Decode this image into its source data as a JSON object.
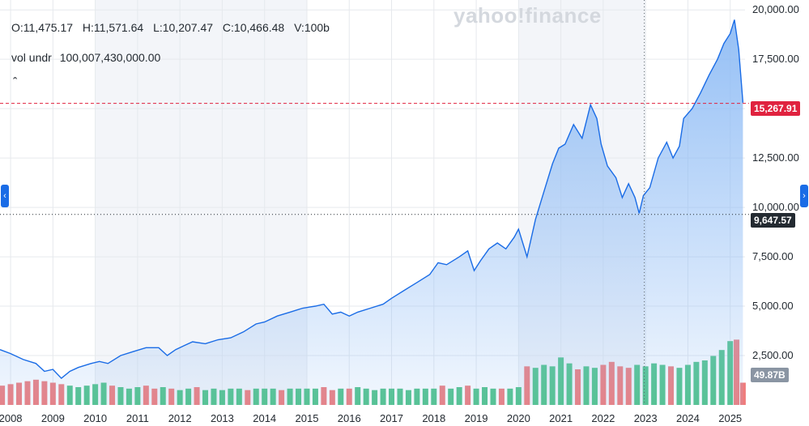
{
  "header": {
    "open": "O:11,475.17",
    "high": "H:11,571.64",
    "low": "L:10,207.47",
    "close": "C:10,466.48",
    "volume": "V:100b",
    "vol_label": "vol undr",
    "vol_value": "100,007,430,000.00",
    "collapse_icon": "chevron-up-icon"
  },
  "watermark": "yahoo!finance",
  "price_tags": {
    "current": "15,267.91",
    "crosshair": "9,647.57",
    "volume": "49.87B"
  },
  "colors": {
    "line": "#1a6ce6",
    "area_top": "#8fbcf5",
    "up_volume": "#50c389",
    "down_volume": "#ef7c7c",
    "current_price": "#e0223f"
  },
  "chart_data": {
    "type": "area",
    "ylim": [
      0,
      20500
    ],
    "y_ticks": [
      2500,
      5000,
      7500,
      10000,
      12500,
      15000,
      17500,
      20000
    ],
    "y_tick_labels": [
      "2,500.00",
      "5,000.00",
      "7,500.00",
      "10,000.00",
      "12,500.00",
      "15,000.00",
      "17,500.00",
      "20,000.00"
    ],
    "x_ticks": [
      2008,
      2009,
      2010,
      2011,
      2012,
      2013,
      2014,
      2015,
      2016,
      2017,
      2018,
      2019,
      2020,
      2021,
      2022,
      2023,
      2024,
      2025
    ],
    "x_tick_labels": [
      "2008",
      "2009",
      "2010",
      "2011",
      "2012",
      "2013",
      "2014",
      "2015",
      "2016",
      "2017",
      "2018",
      "2019",
      "2020",
      "2021",
      "2022",
      "2023",
      "2024",
      "2025"
    ],
    "xlim": [
      2007.75,
      2025.35
    ],
    "current_price": 15267.91,
    "crosshair": {
      "x": 2022.97,
      "y": 9647.57
    },
    "price_series": {
      "name": "Price",
      "x": [
        2007.75,
        2008.0,
        2008.3,
        2008.6,
        2008.8,
        2009.0,
        2009.2,
        2009.4,
        2009.6,
        2009.9,
        2010.1,
        2010.3,
        2010.6,
        2010.9,
        2011.2,
        2011.5,
        2011.7,
        2011.9,
        2012.1,
        2012.3,
        2012.6,
        2012.9,
        2013.2,
        2013.5,
        2013.8,
        2014.0,
        2014.3,
        2014.6,
        2014.9,
        2015.2,
        2015.4,
        2015.6,
        2015.8,
        2016.0,
        2016.2,
        2016.5,
        2016.8,
        2017.0,
        2017.3,
        2017.6,
        2017.9,
        2018.1,
        2018.3,
        2018.6,
        2018.8,
        2018.95,
        2019.1,
        2019.3,
        2019.5,
        2019.7,
        2019.9,
        2020.0,
        2020.2,
        2020.4,
        2020.6,
        2020.8,
        2020.95,
        2021.1,
        2021.3,
        2021.5,
        2021.7,
        2021.85,
        2021.95,
        2022.1,
        2022.3,
        2022.45,
        2022.6,
        2022.75,
        2022.85,
        2022.95,
        2023.1,
        2023.3,
        2023.5,
        2023.65,
        2023.8,
        2023.9,
        2024.1,
        2024.3,
        2024.5,
        2024.7,
        2024.85,
        2025.0,
        2025.1,
        2025.2,
        2025.3
      ],
      "y": [
        2800,
        2600,
        2300,
        2100,
        1700,
        1800,
        1350,
        1700,
        1900,
        2100,
        2200,
        2100,
        2500,
        2700,
        2900,
        2900,
        2500,
        2800,
        3000,
        3200,
        3100,
        3300,
        3400,
        3700,
        4100,
        4200,
        4500,
        4700,
        4900,
        5000,
        5100,
        4600,
        4700,
        4500,
        4700,
        4900,
        5100,
        5400,
        5800,
        6200,
        6600,
        7200,
        7100,
        7500,
        7800,
        6800,
        7300,
        7900,
        8200,
        7900,
        8500,
        8900,
        7500,
        9400,
        10800,
        12200,
        13000,
        13200,
        14200,
        13500,
        15200,
        14500,
        13200,
        12100,
        11500,
        10500,
        11200,
        10500,
        9700,
        10600,
        11000,
        12500,
        13300,
        12500,
        13100,
        14500,
        15000,
        15800,
        16700,
        17500,
        18300,
        18800,
        19500,
        18000,
        15300
      ]
    },
    "volume_series": {
      "name": "Volume",
      "ylim": [
        0,
        6000000000000
      ],
      "x": [
        2007.8,
        2008.0,
        2008.2,
        2008.4,
        2008.6,
        2008.8,
        2009.0,
        2009.2,
        2009.4,
        2009.6,
        2009.8,
        2010.0,
        2010.2,
        2010.4,
        2010.6,
        2010.8,
        2011.0,
        2011.2,
        2011.4,
        2011.6,
        2011.8,
        2012.0,
        2012.2,
        2012.4,
        2012.6,
        2012.8,
        2013.0,
        2013.2,
        2013.4,
        2013.6,
        2013.8,
        2014.0,
        2014.2,
        2014.4,
        2014.6,
        2014.8,
        2015.0,
        2015.2,
        2015.4,
        2015.6,
        2015.8,
        2016.0,
        2016.2,
        2016.4,
        2016.6,
        2016.8,
        2017.0,
        2017.2,
        2017.4,
        2017.6,
        2017.8,
        2018.0,
        2018.2,
        2018.4,
        2018.6,
        2018.8,
        2019.0,
        2019.2,
        2019.4,
        2019.6,
        2019.8,
        2020.0,
        2020.2,
        2020.4,
        2020.6,
        2020.8,
        2021.0,
        2021.2,
        2021.4,
        2021.6,
        2021.8,
        2022.0,
        2022.2,
        2022.4,
        2022.6,
        2022.8,
        2023.0,
        2023.2,
        2023.4,
        2023.6,
        2023.8,
        2024.0,
        2024.2,
        2024.4,
        2024.6,
        2024.8,
        2025.0,
        2025.15,
        2025.3
      ],
      "values": [
        1300000000000,
        1400000000000,
        1500000000000,
        1600000000000,
        1700000000000,
        1600000000000,
        1500000000000,
        1400000000000,
        1300000000000,
        1200000000000,
        1300000000000,
        1400000000000,
        1500000000000,
        1300000000000,
        1200000000000,
        1100000000000,
        1200000000000,
        1300000000000,
        1100000000000,
        1200000000000,
        1100000000000,
        1000000000000,
        1100000000000,
        1200000000000,
        1000000000000,
        1100000000000,
        1000000000000,
        1100000000000,
        1100000000000,
        1000000000000,
        1100000000000,
        1100000000000,
        1100000000000,
        1000000000000,
        1100000000000,
        1100000000000,
        1100000000000,
        1100000000000,
        1200000000000,
        1000000000000,
        1100000000000,
        1100000000000,
        1200000000000,
        1100000000000,
        1000000000000,
        1100000000000,
        1100000000000,
        1100000000000,
        1000000000000,
        1100000000000,
        1100000000000,
        1100000000000,
        1300000000000,
        1100000000000,
        1200000000000,
        1300000000000,
        1100000000000,
        1200000000000,
        1100000000000,
        1100000000000,
        1100000000000,
        1200000000000,
        2600000000000,
        2500000000000,
        2700000000000,
        2600000000000,
        3200000000000,
        2800000000000,
        2400000000000,
        2600000000000,
        2500000000000,
        2700000000000,
        2900000000000,
        2600000000000,
        2500000000000,
        2700000000000,
        2600000000000,
        2800000000000,
        2700000000000,
        2600000000000,
        2500000000000,
        2700000000000,
        2900000000000,
        3000000000000,
        3300000000000,
        3700000000000,
        4300000000000,
        4400000000000,
        1500000000000
      ],
      "direction": [
        "down",
        "down",
        "down",
        "down",
        "down",
        "down",
        "down",
        "down",
        "up",
        "up",
        "up",
        "up",
        "up",
        "down",
        "up",
        "up",
        "up",
        "down",
        "down",
        "up",
        "down",
        "up",
        "up",
        "down",
        "up",
        "up",
        "up",
        "up",
        "up",
        "down",
        "up",
        "up",
        "up",
        "down",
        "up",
        "up",
        "up",
        "up",
        "down",
        "down",
        "up",
        "down",
        "up",
        "up",
        "up",
        "up",
        "up",
        "up",
        "up",
        "up",
        "up",
        "up",
        "down",
        "up",
        "up",
        "down",
        "up",
        "up",
        "up",
        "down",
        "up",
        "up",
        "down",
        "up",
        "up",
        "up",
        "up",
        "up",
        "down",
        "up",
        "up",
        "down",
        "down",
        "down",
        "down",
        "up",
        "up",
        "up",
        "up",
        "down",
        "up",
        "up",
        "up",
        "up",
        "up",
        "up",
        "up",
        "down",
        "down"
      ]
    }
  }
}
